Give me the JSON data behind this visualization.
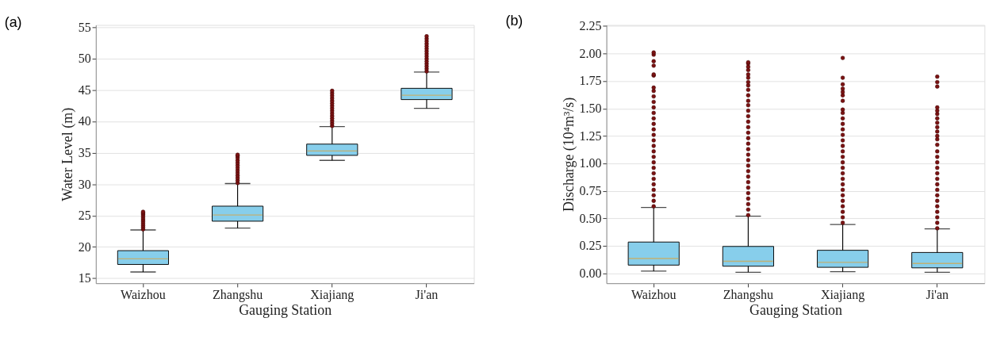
{
  "chart_data": [
    {
      "type": "box",
      "title": "(a)",
      "xlabel": "Gauging Station",
      "ylabel": "Water Level (m)",
      "categories": [
        "Waizhou",
        "Zhangshu",
        "Xiajiang",
        "Ji'an"
      ],
      "color": "#87ceeb",
      "boxes": [
        {
          "low": 16.0,
          "q1": 17.2,
          "median": 18.1,
          "q3": 19.4,
          "high": 22.7,
          "outliers": [
            22.8,
            23.1,
            23.4,
            23.7,
            24.0,
            24.3,
            24.6,
            24.9,
            25.2,
            25.4,
            25.6
          ]
        },
        {
          "low": 23.0,
          "q1": 24.1,
          "median": 25.1,
          "q3": 26.5,
          "high": 30.1,
          "outliers": [
            30.2,
            30.6,
            31.0,
            31.4,
            31.8,
            32.2,
            32.6,
            33.0,
            33.4,
            33.8,
            34.2,
            34.5,
            34.7
          ]
        },
        {
          "low": 33.8,
          "q1": 34.6,
          "median": 35.3,
          "q3": 36.4,
          "high": 39.2,
          "outliers": [
            39.3,
            39.7,
            40.1,
            40.5,
            40.9,
            41.3,
            41.7,
            42.1,
            42.5,
            42.9,
            43.3,
            43.7,
            44.1,
            44.5,
            44.9
          ]
        },
        {
          "low": 42.1,
          "q1": 43.5,
          "median": 44.2,
          "q3": 45.3,
          "high": 47.9,
          "outliers": [
            48.0,
            48.4,
            48.8,
            49.2,
            49.6,
            50.0,
            50.4,
            50.8,
            51.2,
            51.6,
            52.0,
            52.4,
            52.8,
            53.2,
            53.6
          ]
        }
      ],
      "ylim": [
        14.2,
        55.4
      ],
      "yticks": [
        15,
        20,
        25,
        30,
        35,
        40,
        45,
        50,
        55
      ],
      "grid": "y"
    },
    {
      "type": "box",
      "title": "(b)",
      "xlabel": "Gauging Station",
      "ylabel": "Discharge (10⁴m³/s)",
      "categories": [
        "Waizhou",
        "Zhangshu",
        "Xiajiang",
        "Ji'an"
      ],
      "color": "#87ceeb",
      "boxes": [
        {
          "low": 0.02,
          "q1": 0.075,
          "median": 0.135,
          "q3": 0.285,
          "high": 0.6,
          "outliers": [
            0.61,
            0.66,
            0.71,
            0.76,
            0.81,
            0.86,
            0.91,
            0.96,
            1.01,
            1.06,
            1.11,
            1.16,
            1.21,
            1.26,
            1.31,
            1.36,
            1.41,
            1.46,
            1.51,
            1.56,
            1.61,
            1.66,
            1.69,
            1.8,
            1.81,
            1.89,
            1.93,
            1.99,
            2.01
          ]
        },
        {
          "low": 0.01,
          "q1": 0.065,
          "median": 0.11,
          "q3": 0.245,
          "high": 0.52,
          "outliers": [
            0.53,
            0.58,
            0.63,
            0.68,
            0.73,
            0.78,
            0.83,
            0.88,
            0.93,
            0.98,
            1.03,
            1.08,
            1.13,
            1.18,
            1.23,
            1.28,
            1.33,
            1.38,
            1.43,
            1.48,
            1.53,
            1.57,
            1.62,
            1.67,
            1.71,
            1.74,
            1.78,
            1.81,
            1.85,
            1.88,
            1.91,
            1.92
          ]
        },
        {
          "low": 0.015,
          "q1": 0.055,
          "median": 0.1,
          "q3": 0.21,
          "high": 0.445,
          "outliers": [
            0.46,
            0.51,
            0.56,
            0.61,
            0.66,
            0.71,
            0.76,
            0.81,
            0.86,
            0.91,
            0.96,
            1.01,
            1.06,
            1.11,
            1.16,
            1.21,
            1.26,
            1.31,
            1.36,
            1.41,
            1.46,
            1.49,
            1.57,
            1.62,
            1.65,
            1.68,
            1.72,
            1.78,
            1.96
          ]
        },
        {
          "low": 0.01,
          "q1": 0.05,
          "median": 0.09,
          "q3": 0.19,
          "high": 0.405,
          "outliers": [
            0.41,
            0.46,
            0.51,
            0.56,
            0.61,
            0.66,
            0.71,
            0.76,
            0.81,
            0.86,
            0.91,
            0.96,
            1.01,
            1.06,
            1.11,
            1.17,
            1.22,
            1.25,
            1.29,
            1.33,
            1.37,
            1.41,
            1.45,
            1.48,
            1.51,
            1.7,
            1.74,
            1.79
          ]
        }
      ],
      "ylim": [
        -0.09,
        2.26
      ],
      "yticks": [
        {
          "value": 0,
          "label": "0.00"
        },
        {
          "value": 0.25,
          "label": "0.25"
        },
        {
          "value": 0.5,
          "label": "0.50"
        },
        {
          "value": 0.75,
          "label": "0.75"
        },
        {
          "value": 1.0,
          "label": "1.00"
        },
        {
          "value": 1.25,
          "label": "1.25"
        },
        {
          "value": 1.5,
          "label": "1.50"
        },
        {
          "value": 1.75,
          "label": "1.75"
        },
        {
          "value": 2.0,
          "label": "2.00"
        },
        {
          "value": 2.25,
          "label": "2.25"
        }
      ],
      "grid": "y"
    }
  ]
}
